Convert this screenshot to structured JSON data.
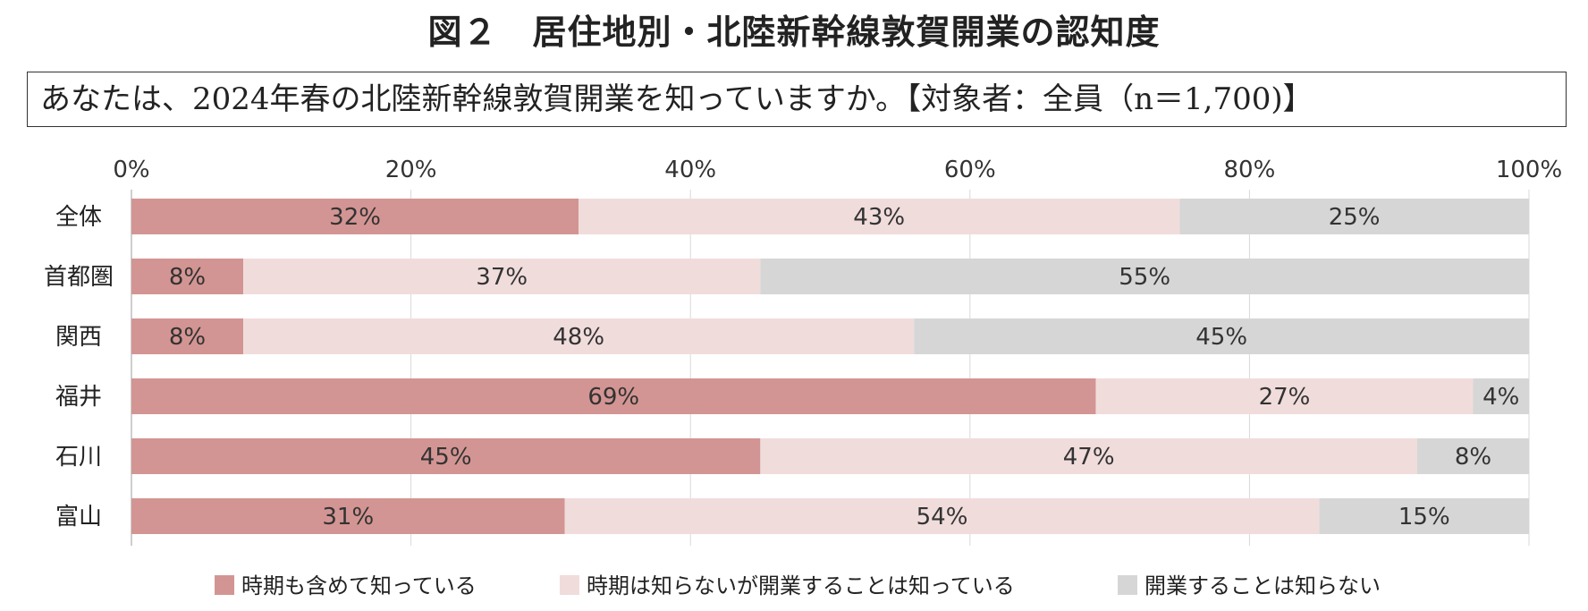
{
  "figure_title": "図２　居住地別・北陸新幹線敦賀開業の認知度",
  "question": "あなたは、2024年春の北陸新幹線敦賀開業を知っていますか。【対象者：全員（n＝1,700)】",
  "chart_data": {
    "type": "bar",
    "orientation": "horizontal",
    "stacked": true,
    "title": "図２　居住地別・北陸新幹線敦賀開業の認知度",
    "xlabel": "",
    "ylabel": "",
    "xlim": [
      0,
      100
    ],
    "x_ticks": [
      "0%",
      "20%",
      "40%",
      "60%",
      "80%",
      "100%"
    ],
    "grid": true,
    "legend_position": "bottom",
    "categories": [
      "全体",
      "首都圏",
      "関西",
      "福井",
      "石川",
      "富山"
    ],
    "series": [
      {
        "name": "時期も含めて知っている",
        "color": "#d39593",
        "values": [
          32,
          8,
          8,
          69,
          45,
          31
        ],
        "labels": [
          "32%",
          "8%",
          "8%",
          "69%",
          "45%",
          "31%"
        ]
      },
      {
        "name": "時期は知らないが開業することは知っている",
        "color": "#f1dcdc",
        "values": [
          43,
          37,
          48,
          27,
          47,
          54
        ],
        "labels": [
          "43%",
          "37%",
          "48%",
          "27%",
          "47%",
          "54%"
        ]
      },
      {
        "name": "開業することは知らない",
        "color": "#d6d6d6",
        "values": [
          25,
          55,
          45,
          4,
          8,
          15
        ],
        "labels": [
          "25%",
          "55%",
          "45%",
          "4%",
          "8%",
          "15%"
        ]
      }
    ]
  }
}
